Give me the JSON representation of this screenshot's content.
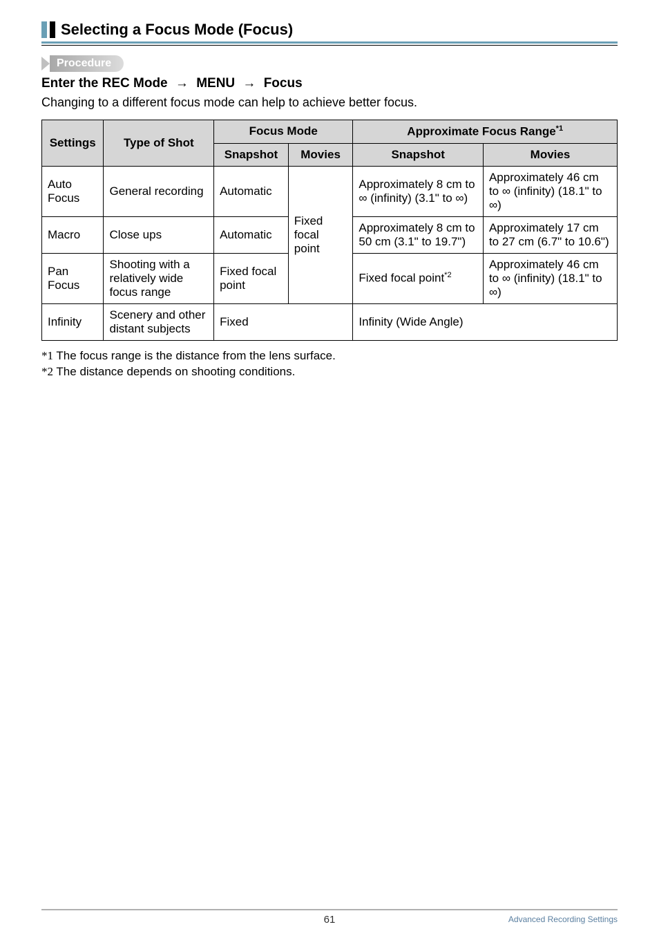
{
  "header": {
    "title": "Selecting a Focus Mode (Focus)"
  },
  "procedure": {
    "label": "Procedure",
    "enter_prefix": "Enter the REC Mode",
    "menu": "MENU",
    "focus": "Focus"
  },
  "description": "Changing to a different focus mode can help to achieve better focus.",
  "table": {
    "headers": {
      "settings": "Settings",
      "type_of_shot": "Type of Shot",
      "focus_mode": "Focus Mode",
      "approx_range": "Approximate Focus Range",
      "approx_range_sup": "*1",
      "snapshot": "Snapshot",
      "movies": "Movies"
    },
    "rows": {
      "auto": {
        "setting": "Auto Focus",
        "type": "General recording",
        "fm_snapshot": "Automatic",
        "range_snapshot": "Approximately 8 cm to ∞ (infinity) (3.1\" to ∞)",
        "range_movies": "Approximately 46 cm to ∞ (infinity) (18.1\" to ∞)"
      },
      "macro": {
        "setting": "Macro",
        "type": "Close ups",
        "fm_snapshot": "Automatic",
        "fm_movies": "Fixed focal point",
        "range_snapshot": "Approximately 8 cm to 50 cm (3.1\" to 19.7\")",
        "range_movies": "Approximately 17 cm to 27 cm (6.7\" to 10.6\")"
      },
      "pan": {
        "setting": "Pan Focus",
        "type": "Shooting with a relatively wide focus range",
        "fm_snapshot": "Fixed focal point",
        "range_snapshot_prefix": "Fixed focal point",
        "range_snapshot_sup": "*2",
        "range_movies": "Approximately 46 cm to ∞ (infinity) (18.1\" to ∞)"
      },
      "infinity": {
        "setting": "Infinity",
        "type": "Scenery and other distant subjects",
        "fm": "Fixed",
        "range": "Infinity (Wide Angle)"
      }
    }
  },
  "footnotes": {
    "f1_marker": "*1",
    "f1_text": "The focus range is the distance from the lens surface.",
    "f2_marker": "*2",
    "f2_text": "The distance depends on shooting conditions."
  },
  "footer": {
    "page_number": "61",
    "section_name": "Advanced Recording Settings"
  }
}
